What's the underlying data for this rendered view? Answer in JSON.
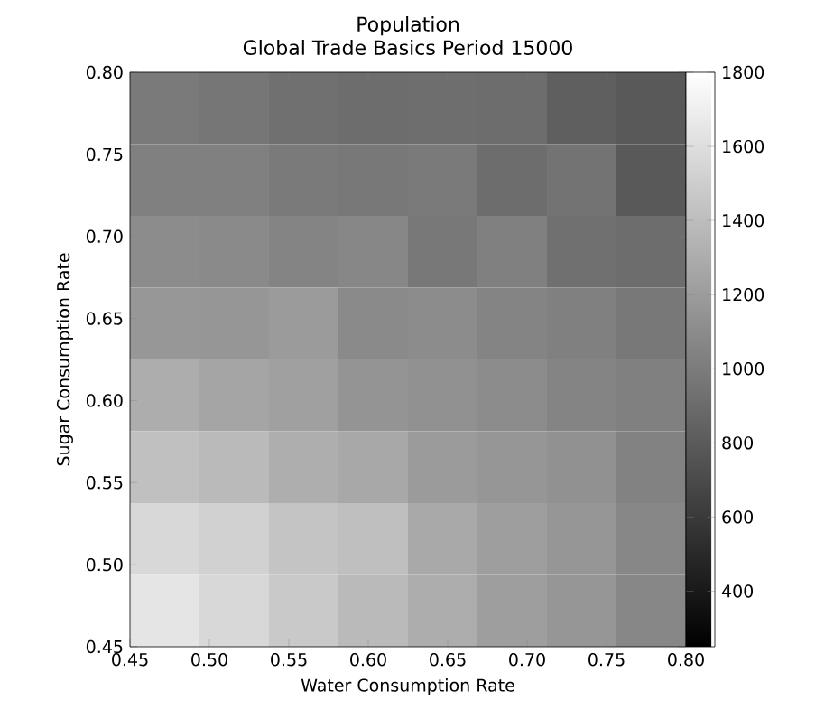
{
  "chart_data": {
    "type": "heatmap",
    "title": "Population",
    "subtitle": "Global Trade Basics Period 15000",
    "xlabel": "Water Consumption Rate",
    "ylabel": "Sugar Consumption Rate",
    "xlim": [
      0.45,
      0.8
    ],
    "ylim": [
      0.45,
      0.8
    ],
    "xticks": [
      {
        "value": 0.45,
        "label": "0.45"
      },
      {
        "value": 0.5,
        "label": "0.50"
      },
      {
        "value": 0.55,
        "label": "0.55"
      },
      {
        "value": 0.6,
        "label": "0.60"
      },
      {
        "value": 0.65,
        "label": "0.65"
      },
      {
        "value": 0.7,
        "label": "0.70"
      },
      {
        "value": 0.75,
        "label": "0.75"
      },
      {
        "value": 0.8,
        "label": "0.80"
      }
    ],
    "yticks": [
      {
        "value": 0.45,
        "label": "0.45"
      },
      {
        "value": 0.5,
        "label": "0.50"
      },
      {
        "value": 0.55,
        "label": "0.55"
      },
      {
        "value": 0.6,
        "label": "0.60"
      },
      {
        "value": 0.65,
        "label": "0.65"
      },
      {
        "value": 0.7,
        "label": "0.70"
      },
      {
        "value": 0.75,
        "label": "0.75"
      },
      {
        "value": 0.8,
        "label": "0.80"
      }
    ],
    "cells": [
      [
        990,
        970,
        930,
        910,
        920,
        910,
        830,
        790
      ],
      [
        1030,
        1030,
        990,
        980,
        990,
        910,
        950,
        790
      ],
      [
        1100,
        1090,
        1050,
        1070,
        980,
        1030,
        930,
        910
      ],
      [
        1170,
        1160,
        1190,
        1090,
        1100,
        1050,
        1030,
        980
      ],
      [
        1300,
        1250,
        1220,
        1150,
        1130,
        1100,
        1050,
        1030
      ],
      [
        1420,
        1380,
        1310,
        1270,
        1190,
        1160,
        1130,
        1040
      ],
      [
        1560,
        1520,
        1440,
        1410,
        1280,
        1210,
        1160,
        1070
      ],
      [
        1640,
        1560,
        1470,
        1380,
        1300,
        1210,
        1160,
        1070
      ]
    ],
    "clim": [
      250,
      1800
    ],
    "cticks": [
      400,
      600,
      800,
      1000,
      1200,
      1400,
      1600,
      1800
    ],
    "grid": false
  }
}
